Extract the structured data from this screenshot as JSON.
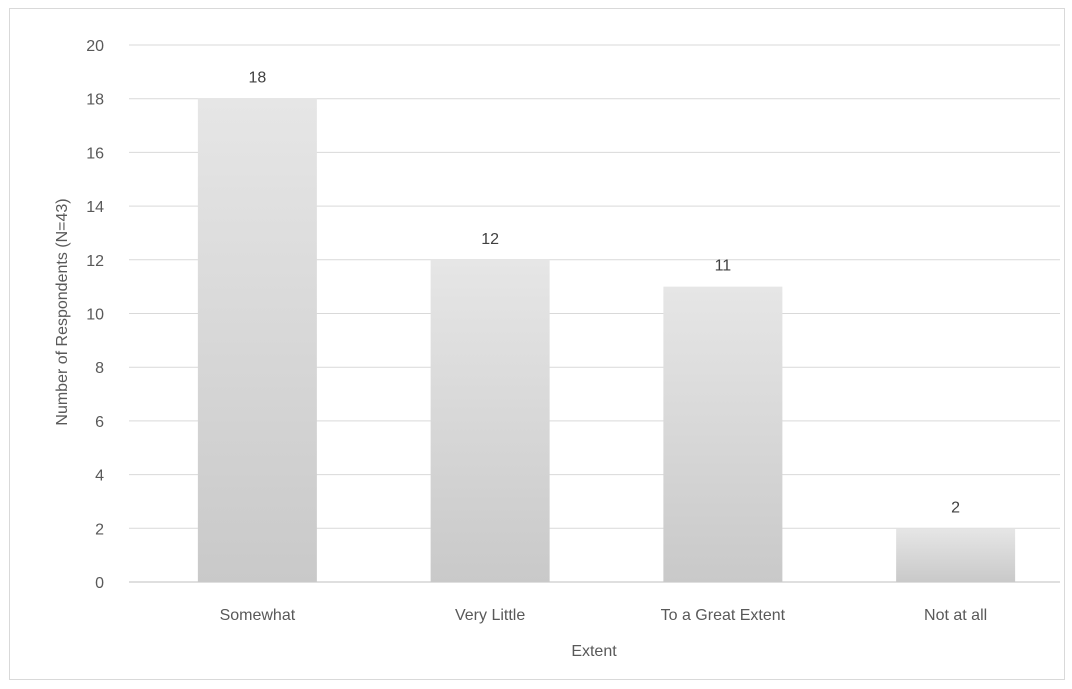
{
  "chart_data": {
    "type": "bar",
    "title": "",
    "xlabel": "Extent",
    "ylabel": "Number of Respondents (N=43)",
    "categories": [
      "Somewhat",
      "Very Little",
      "To a Great Extent",
      "Not at all"
    ],
    "values": [
      18,
      12,
      11,
      2
    ],
    "data_labels": [
      "18",
      "12",
      "11",
      "2"
    ],
    "ylim": [
      0,
      20
    ],
    "yticks": [
      "0",
      "2",
      "4",
      "6",
      "8",
      "10",
      "12",
      "14",
      "16",
      "18",
      "20"
    ],
    "grid": true,
    "legend": "none",
    "colors": {
      "bar_top": "#e6e6e6",
      "bar_bottom": "#c9c9c9",
      "grid": "#d9d9d9",
      "axis": "#bfbfbf"
    }
  }
}
